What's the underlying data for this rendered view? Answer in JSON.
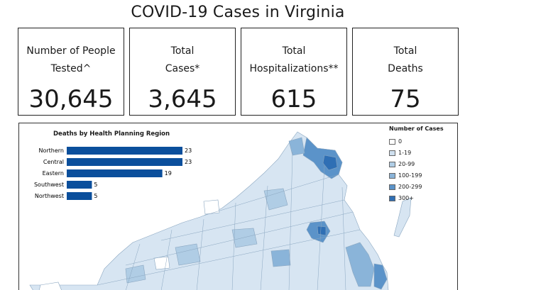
{
  "title": "COVID-19 Cases in Virginia",
  "cards": [
    {
      "label_line1": "Number of People",
      "label_line2": "Tested^",
      "value": "30,645"
    },
    {
      "label_line1": "Total",
      "label_line2": "Cases*",
      "value": "3,645"
    },
    {
      "label_line1": "Total",
      "label_line2": "Hospitalizations**",
      "value": "615"
    },
    {
      "label_line1": "Total",
      "label_line2": "Deaths",
      "value": "75"
    }
  ],
  "chart_data": {
    "type": "bar",
    "title": "Deaths by Health Planning Region",
    "categories": [
      "Northern",
      "Central",
      "Eastern",
      "Southwest",
      "Northwest"
    ],
    "values": [
      23,
      23,
      19,
      5,
      5
    ],
    "xlim": [
      0,
      23
    ],
    "orientation": "horizontal",
    "bar_color": "#0b4f9c"
  },
  "legend": {
    "title": "Number of Cases",
    "items": [
      {
        "label": "0",
        "color": "#ffffff"
      },
      {
        "label": "1-19",
        "color": "#cfe0ef"
      },
      {
        "label": "20-99",
        "color": "#b0cde5"
      },
      {
        "label": "100-199",
        "color": "#8ab4d9"
      },
      {
        "label": "200-299",
        "color": "#5b93c9"
      },
      {
        "label": "300+",
        "color": "#2f6fb4"
      }
    ]
  }
}
